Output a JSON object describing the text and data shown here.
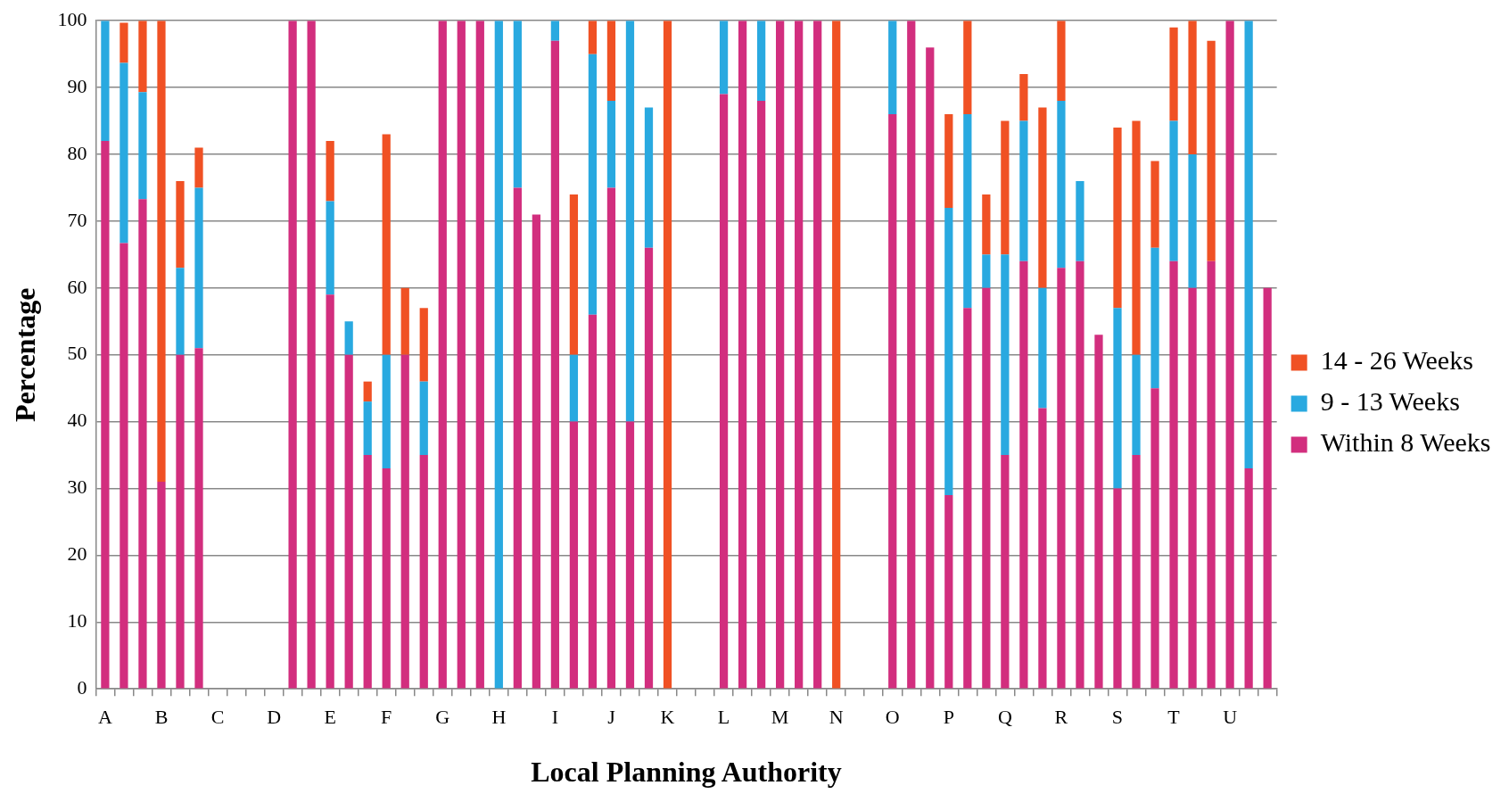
{
  "chart_data": {
    "type": "bar",
    "stacked": true,
    "xlabel": "Local Planning Authority",
    "ylabel": "Percentage",
    "categories": [
      "A",
      null,
      null,
      "B",
      null,
      null,
      "C",
      null,
      null,
      "D",
      null,
      null,
      "E",
      null,
      null,
      "F",
      null,
      null,
      "G",
      null,
      null,
      "H",
      null,
      null,
      "I",
      null,
      null,
      "J",
      null,
      null,
      "K",
      null,
      null,
      "L",
      null,
      null,
      "M",
      null,
      null,
      "N",
      null,
      null,
      "O",
      null,
      null,
      "P",
      null,
      null,
      "Q",
      null,
      null,
      "R",
      null,
      null,
      "S",
      null,
      null,
      "T",
      null,
      null,
      "U",
      null,
      null
    ],
    "series": [
      {
        "name": "Within 8 Weeks",
        "color": "#d22e7e",
        "values": [
          82,
          66.7,
          73.3,
          31,
          50,
          51,
          null,
          null,
          null,
          null,
          100,
          100,
          59,
          50,
          35,
          33,
          50,
          35,
          100,
          100,
          100,
          null,
          75,
          71,
          97,
          40,
          56,
          75,
          40,
          66,
          null,
          null,
          null,
          89,
          100,
          88,
          100,
          100,
          100,
          null,
          null,
          null,
          86,
          100,
          96,
          29,
          57,
          60,
          35,
          64,
          42,
          63,
          64,
          53,
          30,
          35,
          45,
          64,
          60,
          64,
          100,
          33,
          60
        ]
      },
      {
        "name": "9 - 13 Weeks",
        "color": "#29a9e0",
        "values": [
          18,
          27,
          16,
          null,
          13,
          24,
          null,
          null,
          null,
          null,
          null,
          null,
          14,
          5,
          8,
          17,
          null,
          11,
          null,
          null,
          null,
          100,
          25,
          null,
          3,
          10,
          39,
          13,
          60,
          21,
          null,
          null,
          null,
          11,
          null,
          12,
          null,
          null,
          null,
          null,
          null,
          null,
          14,
          null,
          null,
          43,
          29,
          5,
          30,
          21,
          18,
          25,
          12,
          null,
          27,
          15,
          21,
          21,
          20,
          null,
          null,
          67,
          null
        ]
      },
      {
        "name": "14 - 26 Weeks",
        "color": "#f05124",
        "values": [
          null,
          6,
          10.7,
          69,
          13,
          6,
          null,
          null,
          null,
          null,
          null,
          null,
          9,
          null,
          3,
          33,
          10,
          11,
          null,
          null,
          null,
          null,
          null,
          null,
          null,
          24,
          5,
          12,
          null,
          null,
          100,
          null,
          null,
          null,
          null,
          null,
          null,
          null,
          null,
          100,
          null,
          null,
          null,
          null,
          null,
          14,
          14,
          9,
          20,
          7,
          27,
          12,
          null,
          null,
          27,
          35,
          13,
          14,
          20,
          33,
          null,
          null,
          null
        ]
      }
    ],
    "ylim": [
      0,
      100
    ],
    "yticks": [
      0,
      10,
      20,
      30,
      40,
      50,
      60,
      70,
      80,
      90,
      100
    ],
    "grid": "y",
    "legend": "right"
  }
}
